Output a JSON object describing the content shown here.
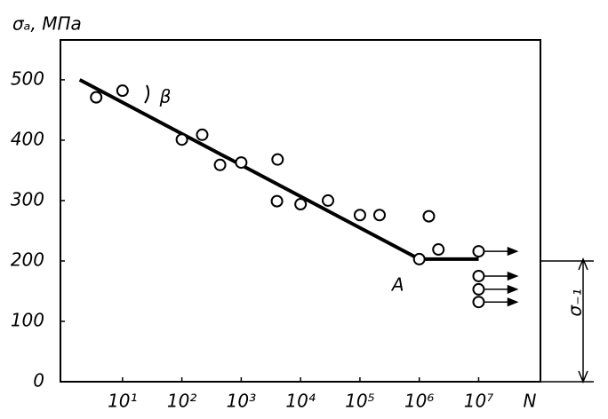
{
  "chart_data": {
    "type": "scatter",
    "ylabel": "σₐ, МПа",
    "xlabel": "N",
    "xscale": "log",
    "xlim": [
      0.9,
      110000000
    ],
    "ylim": [
      0,
      566
    ],
    "xticks": [
      {
        "value": 10,
        "label": "10¹"
      },
      {
        "value": 100,
        "label": "10²"
      },
      {
        "value": 1000,
        "label": "10³"
      },
      {
        "value": 10000,
        "label": "10⁴"
      },
      {
        "value": 100000,
        "label": "10⁵"
      },
      {
        "value": 1000000,
        "label": "10⁶"
      },
      {
        "value": 10000000,
        "label": "10⁷"
      }
    ],
    "yticks": [
      0,
      100,
      200,
      300,
      400,
      500
    ],
    "grid": false,
    "series": [
      {
        "marker": "circle",
        "color": "#000000",
        "x": [
          3.6,
          10,
          100,
          220,
          440,
          1000,
          4100,
          4000,
          10000,
          29000,
          100000,
          214000,
          1450000,
          2100000,
          1000000,
          10000000,
          10000000,
          10000000,
          10000000
        ],
        "values": [
          471,
          482,
          401,
          409,
          359,
          363,
          368,
          299,
          294,
          300,
          276,
          276,
          274,
          219,
          203,
          216,
          175,
          153,
          132
        ]
      },
      {
        "marker": "line",
        "color": "#000000",
        "x": [
          1.9,
          1000000,
          10000000
        ],
        "values": [
          500,
          203,
          203
        ]
      }
    ],
    "annotations": {
      "point": "A",
      "angle": "β",
      "limit": "σ₋₁"
    }
  }
}
